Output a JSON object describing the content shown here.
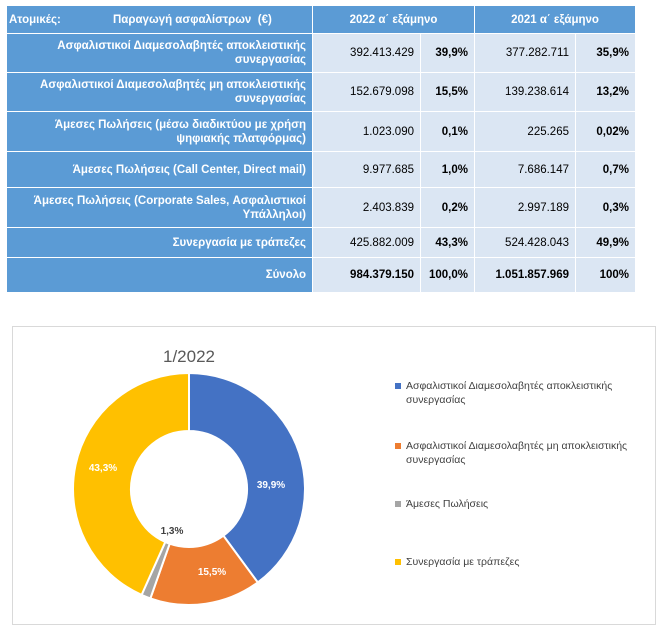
{
  "table": {
    "header": {
      "label_prefix": "Ατομικές:",
      "label": "Παραγωγή ασφαλίστρων",
      "unit": "(€)",
      "col_2022": "2022  α΄ εξάμηνο",
      "col_2021": "2021  α΄ εξάμηνο"
    },
    "rows": [
      {
        "label": "Ασφαλιστικοί Διαμεσολαβητές αποκλειστικής συνεργασίας",
        "v2022": "392.413.429",
        "p2022": "39,9%",
        "v2021": "377.282.711",
        "p2021": "35,9%"
      },
      {
        "label": "Ασφαλιστικοί Διαμεσολαβητές  μη αποκλειστικής συνεργασίας",
        "v2022": "152.679.098",
        "p2022": "15,5%",
        "v2021": "139.238.614",
        "p2021": "13,2%"
      },
      {
        "label": "Άμεσες Πωλήσεις  (μέσω διαδικτύου με χρήση ψηφιακής πλατφόρμας)",
        "v2022": "1.023.090",
        "p2022": "0,1%",
        "v2021": "225.265",
        "p2021": "0,02%"
      },
      {
        "label": "Άμεσες Πωλήσεις  (Call Center,  Direct mail)",
        "v2022": "9.977.685",
        "p2022": "1,0%",
        "v2021": "7.686.147",
        "p2021": "0,7%"
      },
      {
        "label": "Άμεσες Πωλήσεις  (Corporate Sales, Ασφαλιστικοί Υπάλληλοι)",
        "v2022": "2.403.839",
        "p2022": "0,2%",
        "v2021": "2.997.189",
        "p2021": "0,3%"
      },
      {
        "label": "Συνεργασία με τράπεζες",
        "v2022": "425.882.009",
        "p2022": "43,3%",
        "v2021": "524.428.043",
        "p2021": "49,9%"
      },
      {
        "label": "Σύνολο",
        "v2022": "984.379.150",
        "p2022": "100,0%",
        "v2021": "1.051.857.969",
        "p2021": "100%"
      }
    ]
  },
  "chart_data": {
    "type": "pie",
    "title": "1/2022",
    "categories": [
      "Ασφαλιστικοί Διαμεσολαβητές αποκλειστικής συνεργασίας",
      "Ασφαλιστικοί Διαμεσολαβητές  μη αποκλειστικής συνεργασίας",
      "Άμεσες Πωλήσεις",
      "Συνεργασία με τράπεζες"
    ],
    "values": [
      39.9,
      15.5,
      1.3,
      43.3
    ],
    "labels": [
      "39,9%",
      "15,5%",
      "1,3%",
      "43,3%"
    ],
    "colors": [
      "#4472c4",
      "#ed7d31",
      "#a5a5a5",
      "#ffc000"
    ],
    "donut": true,
    "legend": "right"
  }
}
